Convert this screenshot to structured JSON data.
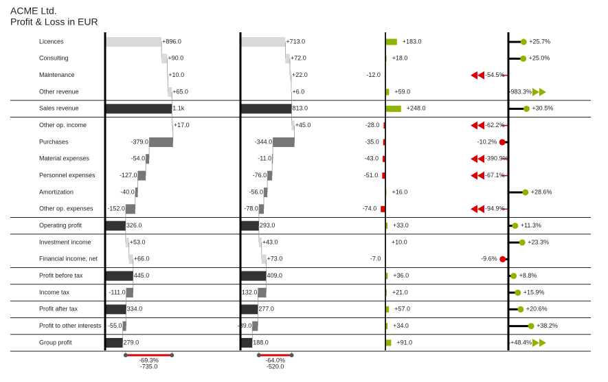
{
  "header": {
    "title": "ACME Ltd.",
    "subtitle": "Profit & Loss in EUR"
  },
  "chart_data": {
    "type": "pl-statement",
    "categories": [
      "Licences",
      "Consulting",
      "Maintenance",
      "Other revenue",
      "Sales revenue",
      "Other op. income",
      "Purchases",
      "Material expenses",
      "Personnel expenses",
      "Amortization",
      "Other op. expenses",
      "Operating profit",
      "Investment income",
      "Financial income, net",
      "Profit before tax",
      "Income tax",
      "Profit after tax",
      "Profit to other interests",
      "Group profit"
    ],
    "totals": [
      false,
      false,
      false,
      false,
      true,
      false,
      false,
      false,
      false,
      false,
      false,
      true,
      false,
      false,
      true,
      false,
      true,
      false,
      true
    ],
    "xlim": [
      0,
      1200
    ],
    "pct_xlim": [
      -45,
      45
    ],
    "colors": {
      "total": "#333333",
      "increase": "#d9d9d9",
      "decrease": "#777777",
      "positive": "#8cb400",
      "negative": "#e10000"
    },
    "series": [
      {
        "type": "waterfall",
        "values": [
          896,
          90,
          10,
          65,
          1061,
          17,
          -379,
          -54,
          -127,
          -40,
          -152,
          326,
          53,
          66,
          445,
          -111,
          334,
          -55,
          279
        ],
        "value_labels": [
          "+896.0",
          "+90.0",
          "+10.0",
          "+65.0",
          "1.1k",
          "+17.0",
          "-379.0",
          "-54.0",
          "-127.0",
          "-40.0",
          "-152.0",
          "326.0",
          "+53.0",
          "+66.0",
          "445.0",
          "-111.0",
          "334.0",
          "-55.0",
          "279.0"
        ]
      },
      {
        "type": "waterfall",
        "values": [
          713,
          72,
          22,
          6,
          813,
          45,
          -344,
          -11,
          -76,
          -56,
          -78,
          293,
          43,
          73,
          409,
          -132,
          277,
          -89,
          188
        ],
        "value_labels": [
          "+713.0",
          "+72.0",
          "+22.0",
          "+6.0",
          "813.0",
          "+45.0",
          "-344.0",
          "-11.0",
          "-76.0",
          "-56.0",
          "-78.0",
          "293.0",
          "+43.0",
          "+73.0",
          "409.0",
          "-132.0",
          "277.0",
          "-89.0",
          "188.0"
        ]
      },
      {
        "type": "delta",
        "values": [
          183,
          18,
          -12,
          59,
          248,
          -28,
          -35,
          -43,
          -51,
          16,
          -74,
          33,
          10,
          -7,
          36,
          21,
          57,
          34,
          91
        ],
        "value_labels": [
          "+183.0",
          "+18.0",
          "-12.0",
          "+59.0",
          "+248.0",
          "-28.0",
          "-35.0",
          "-43.0",
          "-51.0",
          "+16.0",
          "-74.0",
          "+33.0",
          "+10.0",
          "-7.0",
          "+36.0",
          "+21.0",
          "+57.0",
          "+34.0",
          "+91.0"
        ]
      },
      {
        "type": "pin",
        "values": [
          25.7,
          25.0,
          -54.5,
          983.3,
          30.5,
          -62.2,
          -10.2,
          -390.9,
          -67.1,
          28.6,
          -94.9,
          11.3,
          23.3,
          -9.6,
          8.8,
          15.9,
          20.6,
          38.2,
          48.4
        ],
        "value_labels": [
          "+25.7%",
          "+25.0%",
          "-54.5%",
          "+983.3%",
          "+30.5%",
          "-62.2%",
          "-10.2%",
          "-390.9%",
          "-67.1%",
          "+28.6%",
          "-94.9%",
          "+11.3%",
          "+23.3%",
          "-9.6%",
          "+8.8%",
          "+15.9%",
          "+20.6%",
          "+38.2%",
          "+48.4%"
        ]
      }
    ],
    "variances": [
      {
        "value": -735,
        "value_label": "-735.0",
        "pct": -69.3,
        "pct_label": "-69.3%"
      },
      {
        "value": -520,
        "value_label": "-520.0",
        "pct": -64.0,
        "pct_label": "-64.0%"
      }
    ]
  }
}
